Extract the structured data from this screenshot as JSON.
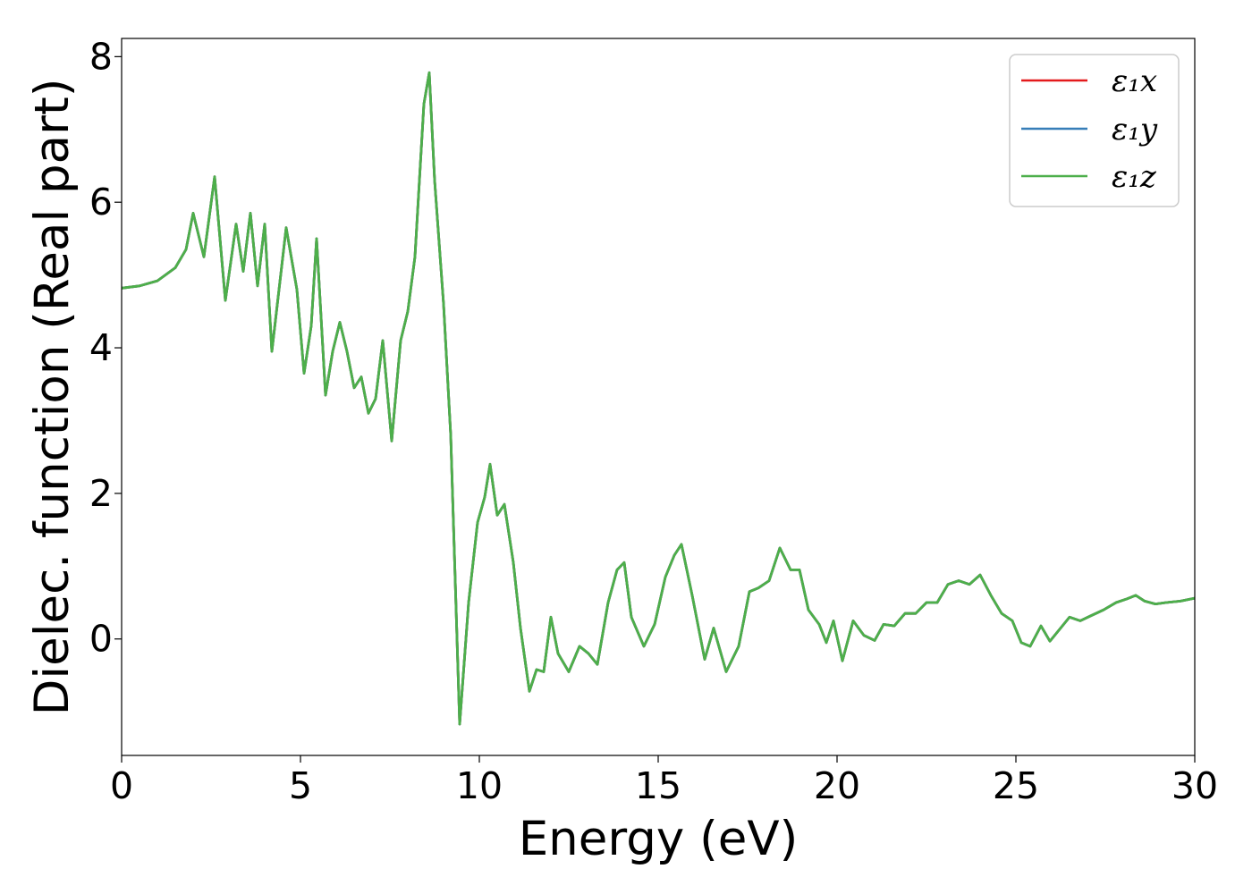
{
  "chart_data": {
    "type": "line",
    "title": "",
    "xlabel": "Energy (eV)",
    "ylabel": "Dielec. function (Real part)",
    "xlim": [
      0,
      30
    ],
    "ylim": [
      -1.6,
      8.25
    ],
    "xticks": [
      0,
      5,
      10,
      15,
      20,
      25,
      30
    ],
    "yticks": [
      0,
      2,
      4,
      6,
      8
    ],
    "grid": false,
    "legend_position": "top-right",
    "series": [
      {
        "name": "ε₁x",
        "color": "#e41a1c",
        "x": [
          0,
          0.5,
          1.0,
          1.5,
          1.8,
          2.0,
          2.3,
          2.6,
          2.9,
          3.2,
          3.4,
          3.6,
          3.8,
          4.0,
          4.2,
          4.6,
          4.9,
          5.1,
          5.3,
          5.45,
          5.7,
          5.9,
          6.1,
          6.3,
          6.5,
          6.7,
          6.9,
          7.1,
          7.3,
          7.55,
          7.8,
          8.0,
          8.2,
          8.45,
          8.6,
          8.75,
          9.0,
          9.2,
          9.45,
          9.7,
          9.95,
          10.15,
          10.3,
          10.5,
          10.7,
          10.95,
          11.15,
          11.4,
          11.6,
          11.8,
          12.0,
          12.2,
          12.5,
          12.8,
          13.05,
          13.3,
          13.6,
          13.85,
          14.05,
          14.25,
          14.6,
          14.9,
          15.2,
          15.45,
          15.65,
          15.95,
          16.3,
          16.55,
          16.9,
          17.25,
          17.55,
          17.8,
          18.1,
          18.4,
          18.7,
          18.95,
          19.2,
          19.5,
          19.7,
          19.9,
          20.15,
          20.45,
          20.75,
          21.05,
          21.3,
          21.6,
          21.9,
          22.2,
          22.5,
          22.8,
          23.1,
          23.4,
          23.7,
          24.0,
          24.3,
          24.6,
          24.9,
          25.15,
          25.4,
          25.7,
          25.95,
          26.2,
          26.5,
          26.8,
          27.1,
          27.45,
          27.8,
          28.1,
          28.35,
          28.6,
          28.9,
          29.2,
          29.6,
          30.0
        ],
        "y": [
          4.82,
          4.85,
          4.92,
          5.1,
          5.35,
          5.85,
          5.25,
          6.35,
          4.65,
          5.7,
          5.05,
          5.85,
          4.85,
          5.7,
          3.95,
          5.65,
          4.8,
          3.65,
          4.3,
          5.5,
          3.35,
          3.95,
          4.35,
          3.95,
          3.45,
          3.6,
          3.1,
          3.3,
          4.1,
          2.72,
          4.1,
          4.5,
          5.25,
          7.35,
          7.78,
          6.3,
          4.6,
          2.8,
          -1.17,
          0.5,
          1.6,
          1.95,
          2.4,
          1.7,
          1.85,
          1.05,
          0.15,
          -0.72,
          -0.42,
          -0.45,
          0.3,
          -0.2,
          -0.45,
          -0.1,
          -0.2,
          -0.35,
          0.5,
          0.95,
          1.05,
          0.3,
          -0.1,
          0.2,
          0.85,
          1.15,
          1.3,
          0.6,
          -0.28,
          0.15,
          -0.45,
          -0.1,
          0.65,
          0.7,
          0.8,
          1.25,
          0.95,
          0.95,
          0.4,
          0.2,
          -0.05,
          0.25,
          -0.3,
          0.25,
          0.05,
          -0.02,
          0.2,
          0.18,
          0.35,
          0.35,
          0.5,
          0.5,
          0.75,
          0.8,
          0.75,
          0.88,
          0.6,
          0.35,
          0.25,
          -0.05,
          -0.1,
          0.18,
          -0.03,
          0.12,
          0.3,
          0.25,
          0.32,
          0.4,
          0.5,
          0.55,
          0.6,
          0.52,
          0.48,
          0.5,
          0.52,
          0.56
        ]
      },
      {
        "name": "ε₁y",
        "color": "#377eb8",
        "x": [
          0,
          0.5,
          1.0,
          1.5,
          1.8,
          2.0,
          2.3,
          2.6,
          2.9,
          3.2,
          3.4,
          3.6,
          3.8,
          4.0,
          4.2,
          4.6,
          4.9,
          5.1,
          5.3,
          5.45,
          5.7,
          5.9,
          6.1,
          6.3,
          6.5,
          6.7,
          6.9,
          7.1,
          7.3,
          7.55,
          7.8,
          8.0,
          8.2,
          8.45,
          8.6,
          8.75,
          9.0,
          9.2,
          9.45,
          9.7,
          9.95,
          10.15,
          10.3,
          10.5,
          10.7,
          10.95,
          11.15,
          11.4,
          11.6,
          11.8,
          12.0,
          12.2,
          12.5,
          12.8,
          13.05,
          13.3,
          13.6,
          13.85,
          14.05,
          14.25,
          14.6,
          14.9,
          15.2,
          15.45,
          15.65,
          15.95,
          16.3,
          16.55,
          16.9,
          17.25,
          17.55,
          17.8,
          18.1,
          18.4,
          18.7,
          18.95,
          19.2,
          19.5,
          19.7,
          19.9,
          20.15,
          20.45,
          20.75,
          21.05,
          21.3,
          21.6,
          21.9,
          22.2,
          22.5,
          22.8,
          23.1,
          23.4,
          23.7,
          24.0,
          24.3,
          24.6,
          24.9,
          25.15,
          25.4,
          25.7,
          25.95,
          26.2,
          26.5,
          26.8,
          27.1,
          27.45,
          27.8,
          28.1,
          28.35,
          28.6,
          28.9,
          29.2,
          29.6,
          30.0
        ],
        "y": [
          4.82,
          4.85,
          4.92,
          5.1,
          5.35,
          5.85,
          5.25,
          6.35,
          4.65,
          5.7,
          5.05,
          5.85,
          4.85,
          5.7,
          3.95,
          5.65,
          4.8,
          3.65,
          4.3,
          5.5,
          3.35,
          3.95,
          4.35,
          3.95,
          3.45,
          3.6,
          3.1,
          3.3,
          4.1,
          2.72,
          4.1,
          4.5,
          5.25,
          7.35,
          7.78,
          6.3,
          4.6,
          2.8,
          -1.17,
          0.5,
          1.6,
          1.95,
          2.4,
          1.7,
          1.85,
          1.05,
          0.15,
          -0.72,
          -0.42,
          -0.45,
          0.3,
          -0.2,
          -0.45,
          -0.1,
          -0.2,
          -0.35,
          0.5,
          0.95,
          1.05,
          0.3,
          -0.1,
          0.2,
          0.85,
          1.15,
          1.3,
          0.6,
          -0.28,
          0.15,
          -0.45,
          -0.1,
          0.65,
          0.7,
          0.8,
          1.25,
          0.95,
          0.95,
          0.4,
          0.2,
          -0.05,
          0.25,
          -0.3,
          0.25,
          0.05,
          -0.02,
          0.2,
          0.18,
          0.35,
          0.35,
          0.5,
          0.5,
          0.75,
          0.8,
          0.75,
          0.88,
          0.6,
          0.35,
          0.25,
          -0.05,
          -0.1,
          0.18,
          -0.03,
          0.12,
          0.3,
          0.25,
          0.32,
          0.4,
          0.5,
          0.55,
          0.6,
          0.52,
          0.48,
          0.5,
          0.52,
          0.56
        ]
      },
      {
        "name": "ε₁z",
        "color": "#4daf4a",
        "x": [
          0,
          0.5,
          1.0,
          1.5,
          1.8,
          2.0,
          2.3,
          2.6,
          2.9,
          3.2,
          3.4,
          3.6,
          3.8,
          4.0,
          4.2,
          4.6,
          4.9,
          5.1,
          5.3,
          5.45,
          5.7,
          5.9,
          6.1,
          6.3,
          6.5,
          6.7,
          6.9,
          7.1,
          7.3,
          7.55,
          7.8,
          8.0,
          8.2,
          8.45,
          8.6,
          8.75,
          9.0,
          9.2,
          9.45,
          9.7,
          9.95,
          10.15,
          10.3,
          10.5,
          10.7,
          10.95,
          11.15,
          11.4,
          11.6,
          11.8,
          12.0,
          12.2,
          12.5,
          12.8,
          13.05,
          13.3,
          13.6,
          13.85,
          14.05,
          14.25,
          14.6,
          14.9,
          15.2,
          15.45,
          15.65,
          15.95,
          16.3,
          16.55,
          16.9,
          17.25,
          17.55,
          17.8,
          18.1,
          18.4,
          18.7,
          18.95,
          19.2,
          19.5,
          19.7,
          19.9,
          20.15,
          20.45,
          20.75,
          21.05,
          21.3,
          21.6,
          21.9,
          22.2,
          22.5,
          22.8,
          23.1,
          23.4,
          23.7,
          24.0,
          24.3,
          24.6,
          24.9,
          25.15,
          25.4,
          25.7,
          25.95,
          26.2,
          26.5,
          26.8,
          27.1,
          27.45,
          27.8,
          28.1,
          28.35,
          28.6,
          28.9,
          29.2,
          29.6,
          30.0
        ],
        "y": [
          4.82,
          4.85,
          4.92,
          5.1,
          5.35,
          5.85,
          5.25,
          6.35,
          4.65,
          5.7,
          5.05,
          5.85,
          4.85,
          5.7,
          3.95,
          5.65,
          4.8,
          3.65,
          4.3,
          5.5,
          3.35,
          3.95,
          4.35,
          3.95,
          3.45,
          3.6,
          3.1,
          3.3,
          4.1,
          2.72,
          4.1,
          4.5,
          5.25,
          7.35,
          7.78,
          6.3,
          4.6,
          2.8,
          -1.17,
          0.5,
          1.6,
          1.95,
          2.4,
          1.7,
          1.85,
          1.05,
          0.15,
          -0.72,
          -0.42,
          -0.45,
          0.3,
          -0.2,
          -0.45,
          -0.1,
          -0.2,
          -0.35,
          0.5,
          0.95,
          1.05,
          0.3,
          -0.1,
          0.2,
          0.85,
          1.15,
          1.3,
          0.6,
          -0.28,
          0.15,
          -0.45,
          -0.1,
          0.65,
          0.7,
          0.8,
          1.25,
          0.95,
          0.95,
          0.4,
          0.2,
          -0.05,
          0.25,
          -0.3,
          0.25,
          0.05,
          -0.02,
          0.2,
          0.18,
          0.35,
          0.35,
          0.5,
          0.5,
          0.75,
          0.8,
          0.75,
          0.88,
          0.6,
          0.35,
          0.25,
          -0.05,
          -0.1,
          0.18,
          -0.03,
          0.12,
          0.3,
          0.25,
          0.32,
          0.4,
          0.5,
          0.55,
          0.6,
          0.52,
          0.48,
          0.5,
          0.52,
          0.56
        ]
      }
    ]
  }
}
